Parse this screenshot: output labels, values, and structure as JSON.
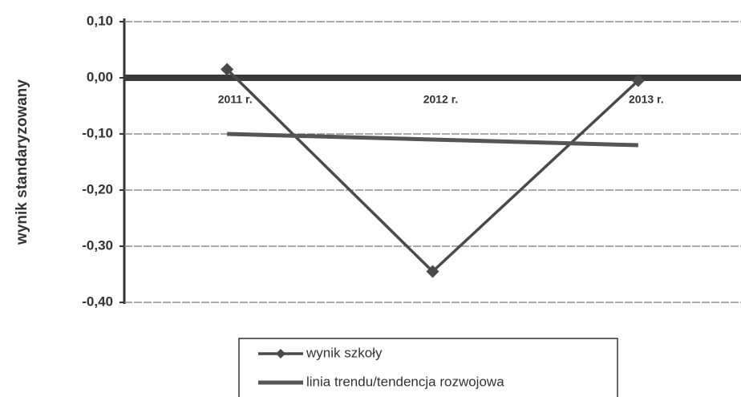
{
  "chart_data": {
    "type": "line",
    "y_label": "wynik standaryzowany",
    "categories": [
      "2011 r.",
      "2012 r.",
      "2013 r."
    ],
    "series": [
      {
        "name": "wynik szkoły",
        "color": "#4a4a4a",
        "marker": "diamond",
        "values": [
          0.015,
          -0.345,
          -0.005
        ]
      },
      {
        "name": "linia trendu/tendencja rozwojowa",
        "color": "#555555",
        "marker": "none",
        "values": [
          -0.1,
          -0.11,
          -0.12
        ]
      }
    ],
    "ylim": [
      -0.4,
      0.1
    ],
    "yticks": [
      {
        "value": -0.4,
        "label": "-0,40"
      },
      {
        "value": -0.3,
        "label": "-0,30"
      },
      {
        "value": -0.2,
        "label": "-0,20"
      },
      {
        "value": -0.1,
        "label": "-0,10"
      },
      {
        "value": 0.0,
        "label": "0,00"
      },
      {
        "value": 0.1,
        "label": "0,10"
      }
    ],
    "grid": true,
    "legend": "bottom"
  }
}
